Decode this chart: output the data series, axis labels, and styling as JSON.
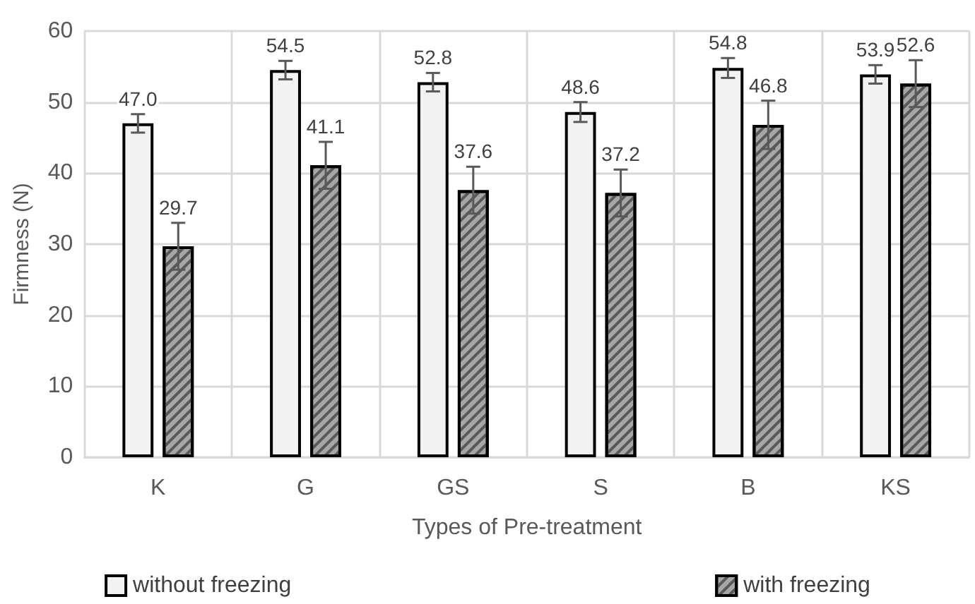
{
  "chart_data": {
    "type": "bar",
    "xlabel": "Types of Pre-treatment",
    "ylabel": "Firmness (N)",
    "categories": [
      "K",
      "G",
      "GS",
      "S",
      "B",
      "KS"
    ],
    "series": [
      {
        "name": "without freezing",
        "color": "#f2f2f2",
        "values": [
          47.0,
          54.5,
          52.8,
          48.6,
          54.8,
          53.9
        ],
        "errors": [
          1.3,
          1.3,
          1.3,
          1.4,
          1.4,
          1.3
        ],
        "value_labels": [
          "47.0",
          "54.5",
          "52.8",
          "48.6",
          "54.8",
          "53.9"
        ]
      },
      {
        "name": "with freezing",
        "color": "#a6a6a6",
        "values": [
          29.7,
          41.1,
          37.6,
          37.2,
          46.8,
          52.6
        ],
        "errors": [
          3.3,
          3.3,
          3.3,
          3.3,
          3.4,
          3.3
        ],
        "value_labels": [
          "29.7",
          "41.1",
          "37.6",
          "37.2",
          "46.8",
          "52.6"
        ]
      }
    ],
    "ylim": [
      0,
      60
    ],
    "yticks": [
      0,
      10,
      20,
      30,
      40,
      50,
      60
    ],
    "grid": true,
    "legend": "bottom"
  }
}
